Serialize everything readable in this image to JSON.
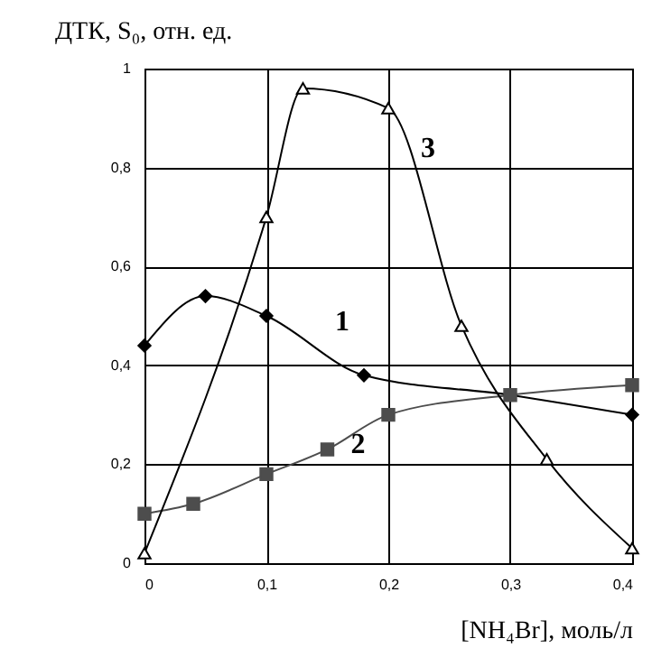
{
  "chart_data": {
    "type": "line",
    "ylabel": "ДТК, S₀, отн. ед.",
    "xlabel": "[NH₄Br], моль/л",
    "xlim": [
      0,
      0.4
    ],
    "xticks": [
      0,
      {
        "value": 0.1,
        "label": "0,1"
      },
      {
        "value": 0.2,
        "label": "0,2"
      },
      {
        "value": 0.3,
        "label": "0,3"
      },
      {
        "value": 0.4,
        "label": "0,4"
      }
    ],
    "ylim": [
      0,
      1
    ],
    "yticks": [
      0,
      {
        "value": 0.2,
        "label": "0,2"
      },
      {
        "value": 0.4,
        "label": "0,4"
      },
      {
        "value": 0.6,
        "label": "0,6"
      },
      {
        "value": 0.8,
        "label": "0,8"
      },
      1
    ],
    "grid": true,
    "series": [
      {
        "name": "1",
        "color": "#000000",
        "marker": "diamond",
        "x": [
          0,
          0.05,
          0.1,
          0.18,
          0.3,
          0.4
        ],
        "values": [
          0.44,
          0.54,
          0.5,
          0.38,
          0.34,
          0.3
        ]
      },
      {
        "name": "2",
        "color": "#4d4d4d",
        "marker": "square",
        "x": [
          0,
          0.04,
          0.1,
          0.15,
          0.2,
          0.3,
          0.4
        ],
        "values": [
          0.1,
          0.12,
          0.18,
          0.23,
          0.3,
          0.34,
          0.36
        ]
      },
      {
        "name": "3",
        "color": "#000000",
        "marker": "triangle",
        "x": [
          0,
          0.1,
          0.13,
          0.2,
          0.26,
          0.33,
          0.4
        ],
        "values": [
          0.02,
          0.7,
          0.96,
          0.92,
          0.48,
          0.21,
          0.03
        ]
      }
    ]
  }
}
